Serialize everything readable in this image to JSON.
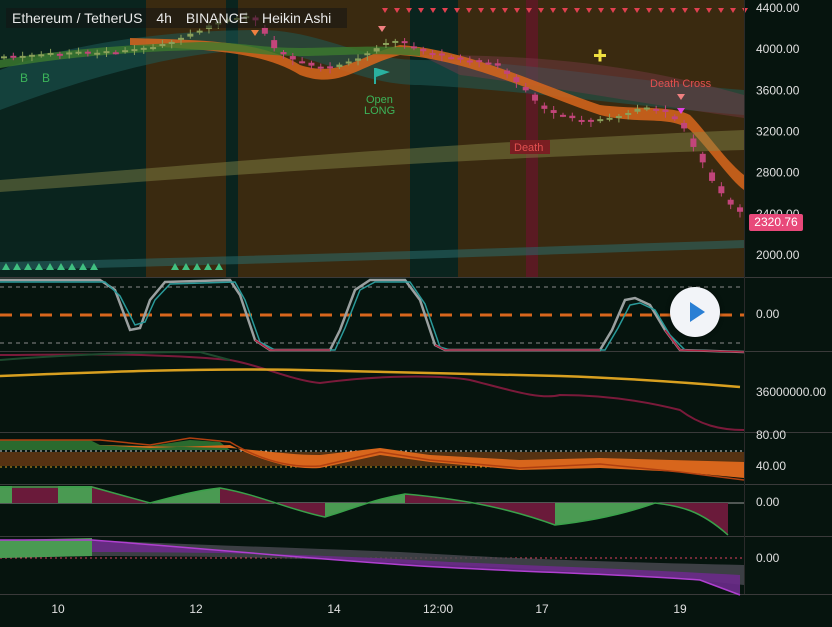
{
  "header": {
    "symbol": "Ethereum / TetherUS",
    "interval": "4h",
    "exchange": "BINANCE",
    "chart_style": "Heikin Ashi"
  },
  "last_price": "2320.76",
  "colors": {
    "background": "#06140e",
    "bull": "#8aa05a",
    "bear": "#c2457a",
    "orange_zone": "#3a2a10",
    "teal_zone": "#0b2a24",
    "death_zone": "#5a1a22",
    "last_price_badge": "#e8497a",
    "axis_text": "#e0e0e0"
  },
  "annotations": {
    "open_long": [
      "Open",
      "LONG"
    ],
    "death": "Death",
    "death_cross": "Death Cross",
    "buy_marker": "B"
  },
  "chart_data": [
    {
      "type": "candlestick",
      "style": "Heikin Ashi",
      "y_axis_ticks": [
        "4400.00",
        "4000.00",
        "3600.00",
        "3200.00",
        "2800.00",
        "2400.00",
        "2000.00"
      ],
      "ylim": [
        1850,
        4400
      ],
      "x_axis_ticks": [
        "10",
        "12",
        "14",
        "12:00",
        "17",
        "19"
      ],
      "close_series": [
        3930,
        3925,
        3935,
        3940,
        3950,
        3960,
        3955,
        3965,
        3975,
        3960,
        3965,
        3980,
        3970,
        3990,
        4000,
        4010,
        4020,
        4050,
        4070,
        4110,
        4150,
        4180,
        4230,
        4260,
        4290,
        4300,
        4320,
        4280,
        4150,
        4010,
        3950,
        3900,
        3880,
        3840,
        3830,
        3820,
        3850,
        3880,
        3910,
        3960,
        4010,
        4060,
        4080,
        4060,
        4010,
        3980,
        3960,
        3940,
        3920,
        3900,
        3890,
        3880,
        3870,
        3840,
        3760,
        3680,
        3600,
        3500,
        3420,
        3380,
        3360,
        3330,
        3310,
        3300,
        3320,
        3330,
        3350,
        3380,
        3420,
        3430,
        3420,
        3390,
        3320,
        3230,
        3050,
        2900,
        2720,
        2600,
        2490,
        2420
      ]
    },
    {
      "type": "line",
      "panel": "stochastic",
      "y_axis_ticks": [
        "0.00"
      ]
    },
    {
      "type": "line",
      "panel": "volume_ma",
      "y_axis_ticks": [
        "36000000.00"
      ]
    },
    {
      "type": "area",
      "panel": "rsi_bands",
      "y_axis_ticks": [
        "80.00",
        "40.00"
      ]
    },
    {
      "type": "area",
      "panel": "momentum",
      "y_axis_ticks": [
        "0.00"
      ]
    },
    {
      "type": "area",
      "panel": "oscillator",
      "y_axis_ticks": [
        "0.00"
      ]
    }
  ]
}
